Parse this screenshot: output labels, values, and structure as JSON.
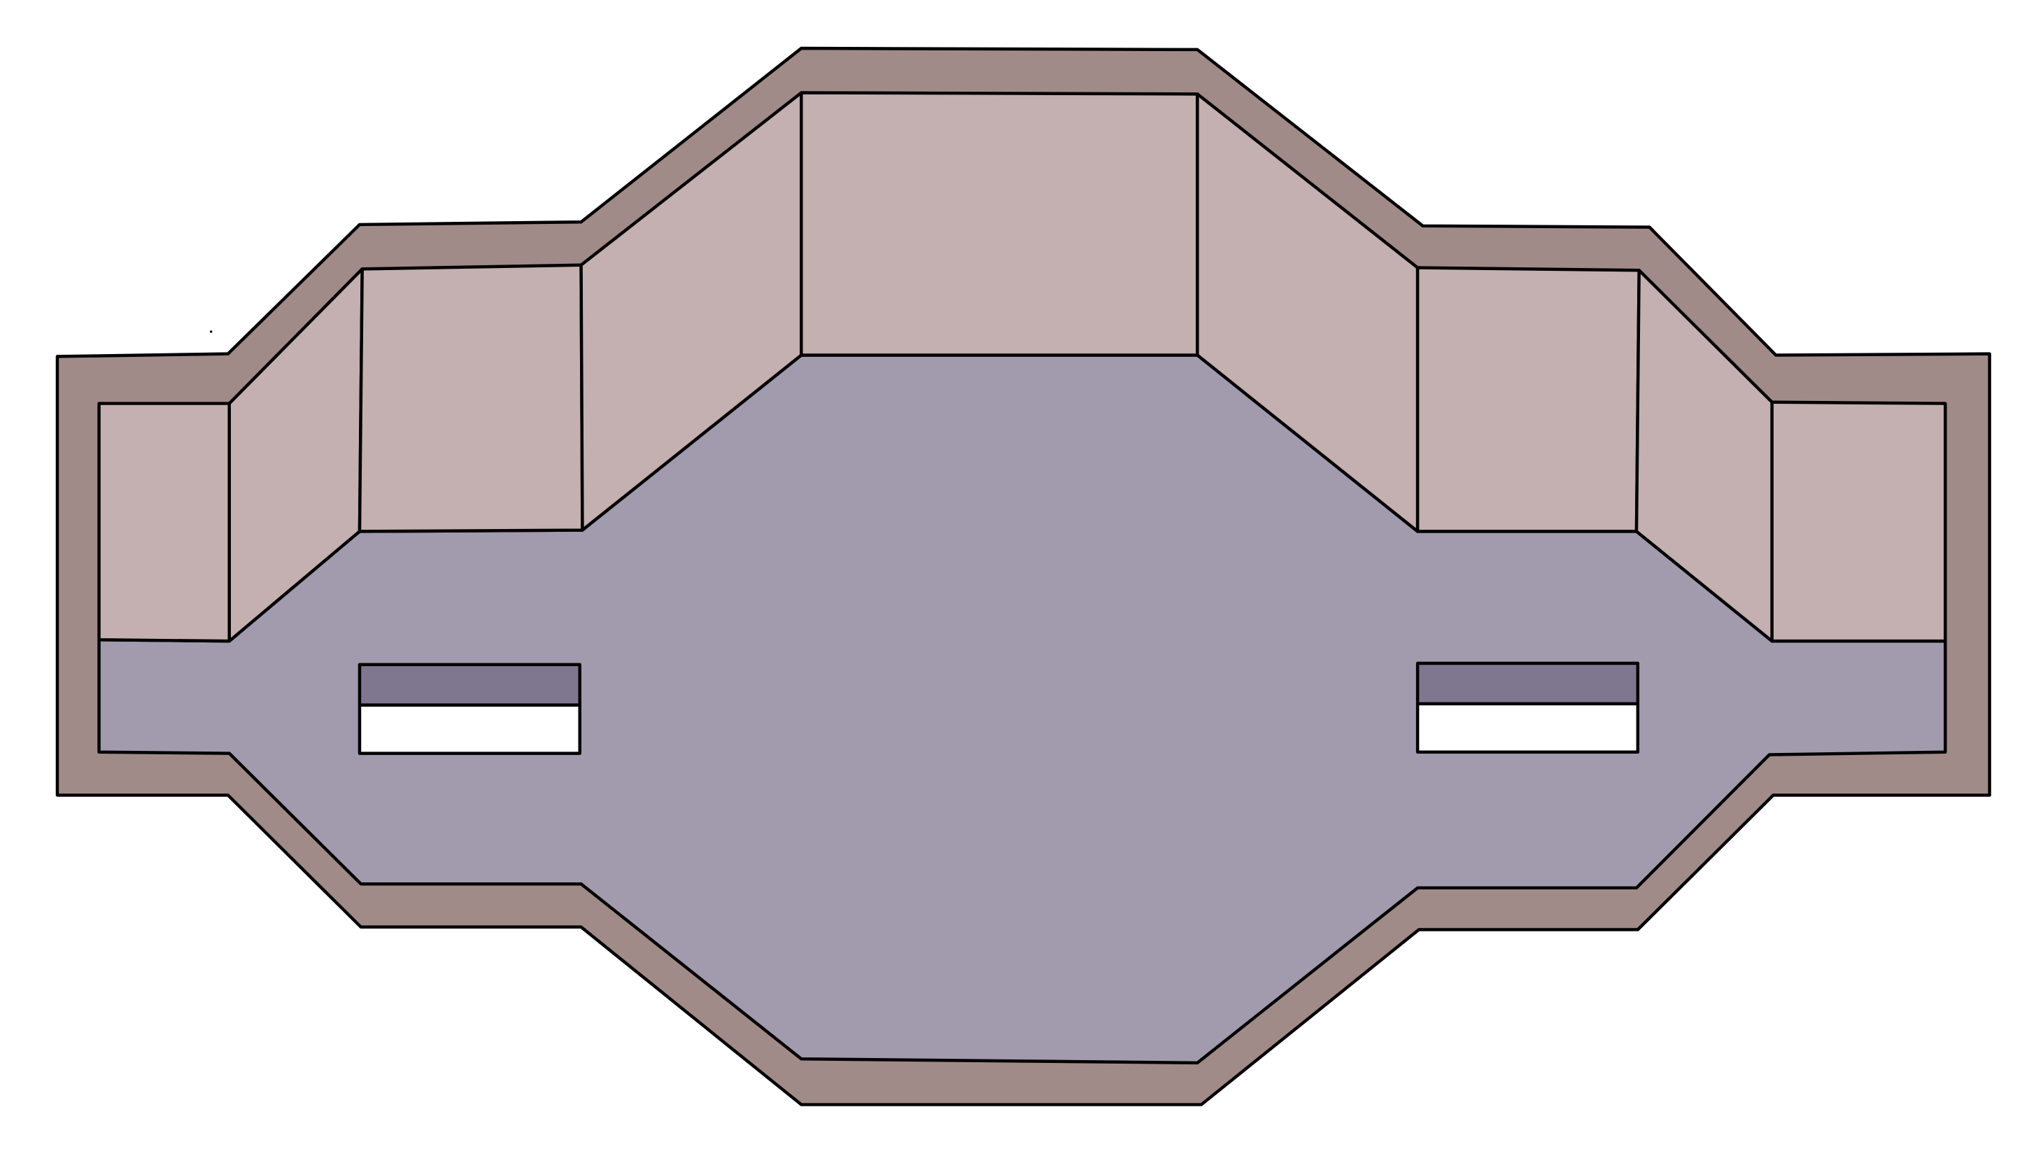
{
  "scene": {
    "kind": "top-down room map",
    "colors": {
      "outer_rim": "#a18b88",
      "wall": "#c4b0b0",
      "floor": "#a29bae",
      "vent_top": "#7f768f",
      "vent_opening": "#ffffff",
      "outline": "#000000",
      "background": "#ffffff"
    },
    "elements": {
      "outer_rim": "outer-rim",
      "floor": "floor",
      "walls": [
        "left-end",
        "left-diagonal",
        "left-inner",
        "center-left-diagonal",
        "center",
        "center-right-diagonal",
        "right-inner",
        "right-diagonal",
        "right-end"
      ],
      "vents": [
        "left-vent",
        "right-vent"
      ]
    }
  }
}
